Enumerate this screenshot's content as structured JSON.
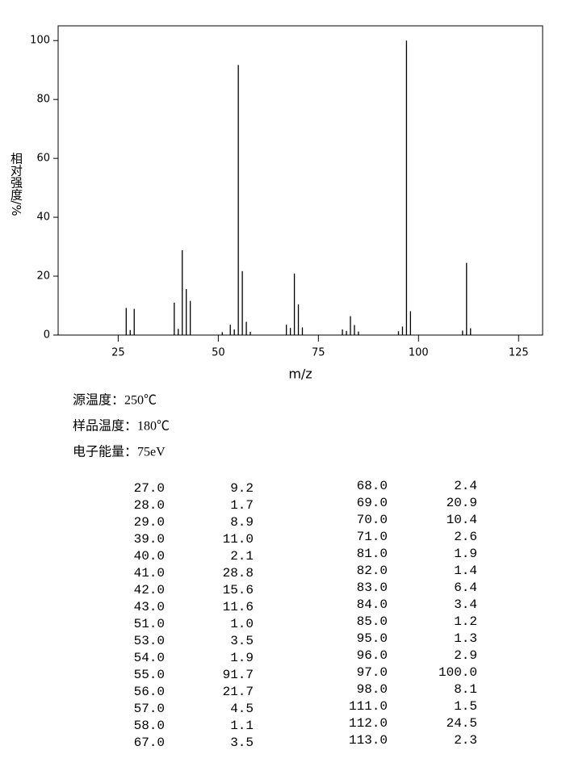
{
  "chart_data": {
    "type": "bar",
    "xlabel": "m/z",
    "ylabel": "相对强度/%",
    "xlim": [
      10,
      131
    ],
    "ylim": [
      0,
      105
    ],
    "xticks": [
      25,
      50,
      75,
      100,
      125
    ],
    "yticks": [
      0,
      20,
      40,
      60,
      80,
      100
    ],
    "color": "#000000",
    "x": [
      27,
      28,
      29,
      39,
      40,
      41,
      42,
      43,
      51,
      53,
      54,
      55,
      56,
      57,
      58,
      67,
      68,
      69,
      70,
      71,
      81,
      82,
      83,
      84,
      85,
      95,
      96,
      97,
      98,
      111,
      112,
      113
    ],
    "x_labels": [
      "27.0",
      "28.0",
      "29.0",
      "39.0",
      "40.0",
      "41.0",
      "42.0",
      "43.0",
      "51.0",
      "53.0",
      "54.0",
      "55.0",
      "56.0",
      "57.0",
      "58.0",
      "67.0",
      "68.0",
      "69.0",
      "70.0",
      "71.0",
      "81.0",
      "82.0",
      "83.0",
      "84.0",
      "85.0",
      "95.0",
      "96.0",
      "97.0",
      "98.0",
      "111.0",
      "112.0",
      "113.0"
    ],
    "values": [
      9.2,
      1.7,
      8.9,
      11.0,
      2.1,
      28.8,
      15.6,
      11.6,
      1.0,
      3.5,
      1.9,
      91.7,
      21.7,
      4.5,
      1.1,
      3.5,
      2.4,
      20.9,
      10.4,
      2.6,
      1.9,
      1.4,
      6.4,
      3.4,
      1.2,
      1.3,
      2.9,
      100.0,
      8.1,
      1.5,
      24.5,
      2.3
    ],
    "value_labels": [
      "9.2",
      "1.7",
      "8.9",
      "11.0",
      "2.1",
      "28.8",
      "15.6",
      "11.6",
      "1.0",
      "3.5",
      "1.9",
      "91.7",
      "21.7",
      "4.5",
      "1.1",
      "3.5",
      "2.4",
      "20.9",
      "10.4",
      "2.6",
      "1.9",
      "1.4",
      "6.4",
      "3.4",
      "1.2",
      "1.3",
      "2.9",
      "100.0",
      "8.1",
      "1.5",
      "24.5",
      "2.3"
    ]
  },
  "conditions": [
    "源温度：250℃",
    "样品温度：180℃",
    "电子能量：75eV"
  ]
}
